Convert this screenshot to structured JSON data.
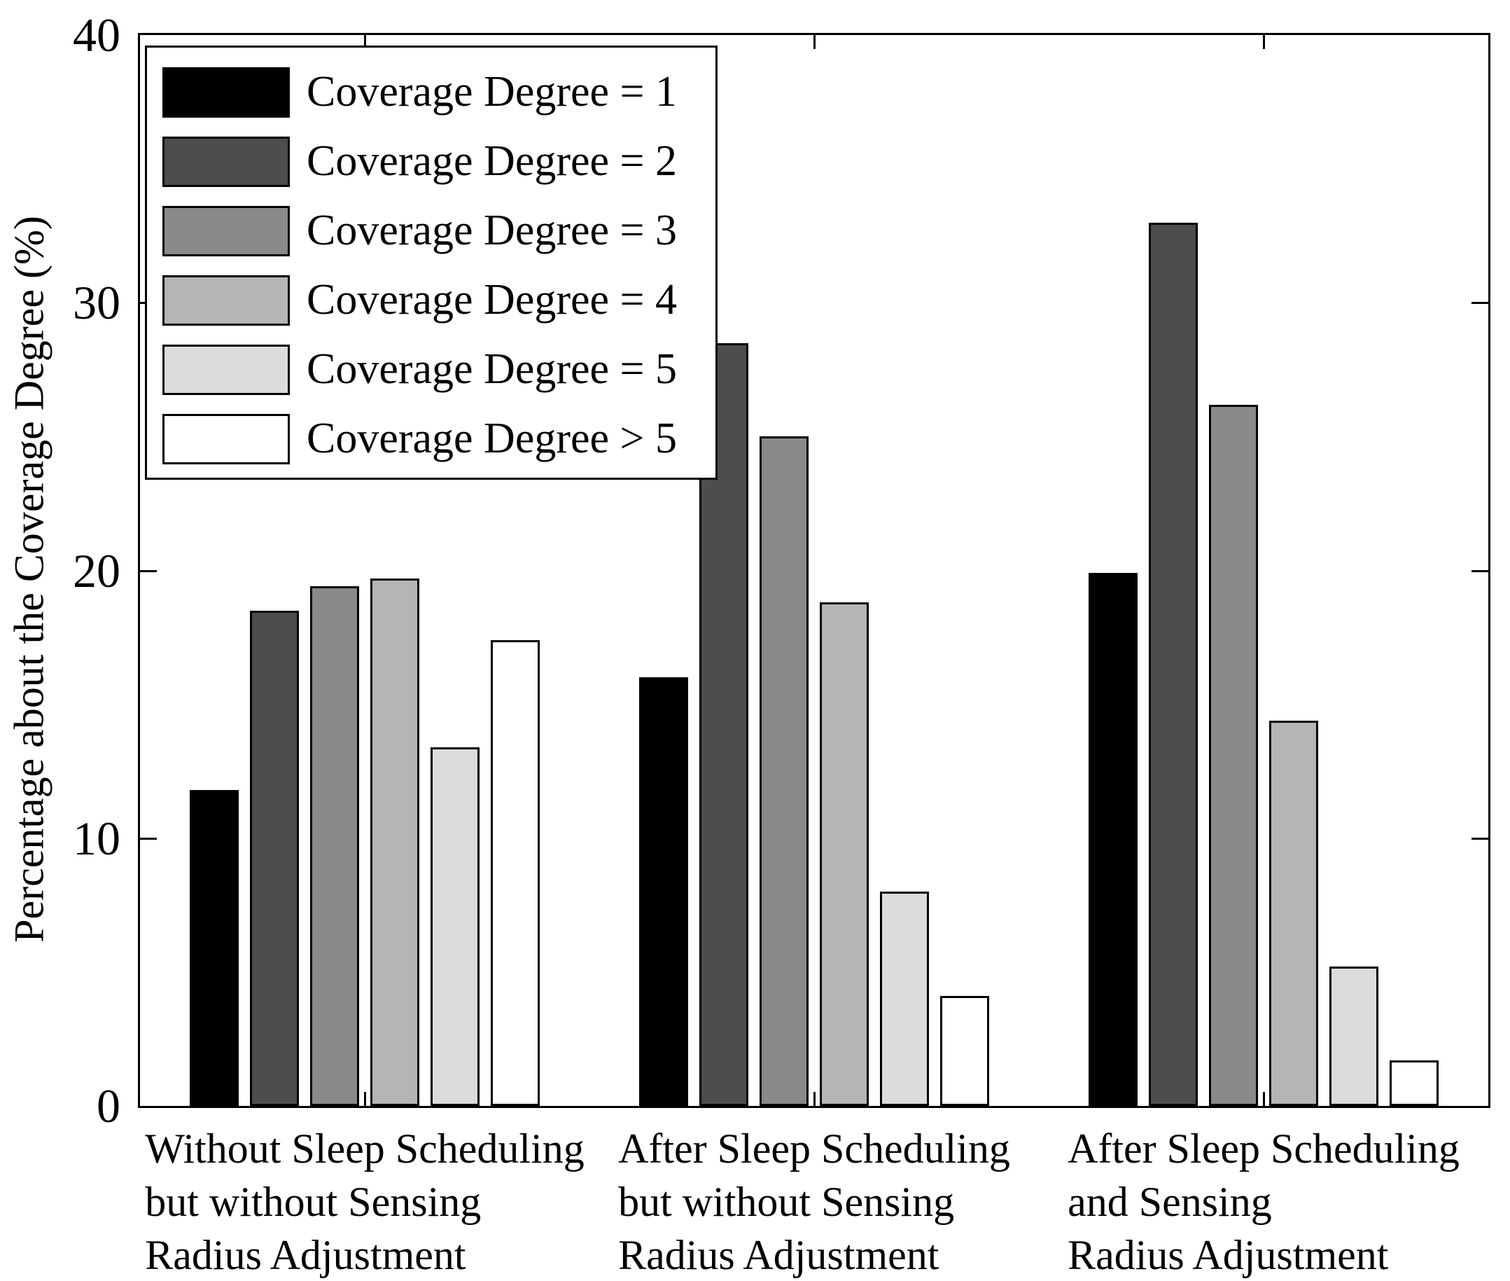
{
  "chart_data": {
    "type": "bar",
    "title": "",
    "xlabel": "",
    "ylabel": "Percentage about the Coverage Degree (%)",
    "ylim": [
      0,
      40
    ],
    "y_ticks": [
      0,
      10,
      20,
      30,
      40
    ],
    "grid": false,
    "legend_position": "top-left",
    "background": "#ffffff",
    "axis_color": "#000000",
    "categories": [
      "Without Sleep Scheduling\nbut without Sensing\nRadius Adjustment",
      "After Sleep Scheduling\nbut without Sensing\nRadius Adjustment",
      "After Sleep Scheduling\nand Sensing\nRadius Adjustment"
    ],
    "series": [
      {
        "name": "Coverage Degree = 1",
        "color": "#000000",
        "values": [
          11.8,
          16.0,
          19.9
        ]
      },
      {
        "name": "Coverage Degree = 2",
        "color": "#4d4d4d",
        "values": [
          18.5,
          28.5,
          33.0
        ]
      },
      {
        "name": "Coverage Degree = 3",
        "color": "#8a8a8a",
        "values": [
          19.4,
          25.0,
          26.2
        ]
      },
      {
        "name": "Coverage Degree = 4",
        "color": "#b5b5b5",
        "values": [
          19.7,
          18.8,
          14.4
        ]
      },
      {
        "name": "Coverage Degree = 5",
        "color": "#dcdcdc",
        "values": [
          13.4,
          8.0,
          5.2
        ]
      },
      {
        "name": "Coverage Degree > 5",
        "color": "#ffffff",
        "values": [
          17.4,
          4.1,
          1.7
        ]
      }
    ]
  }
}
